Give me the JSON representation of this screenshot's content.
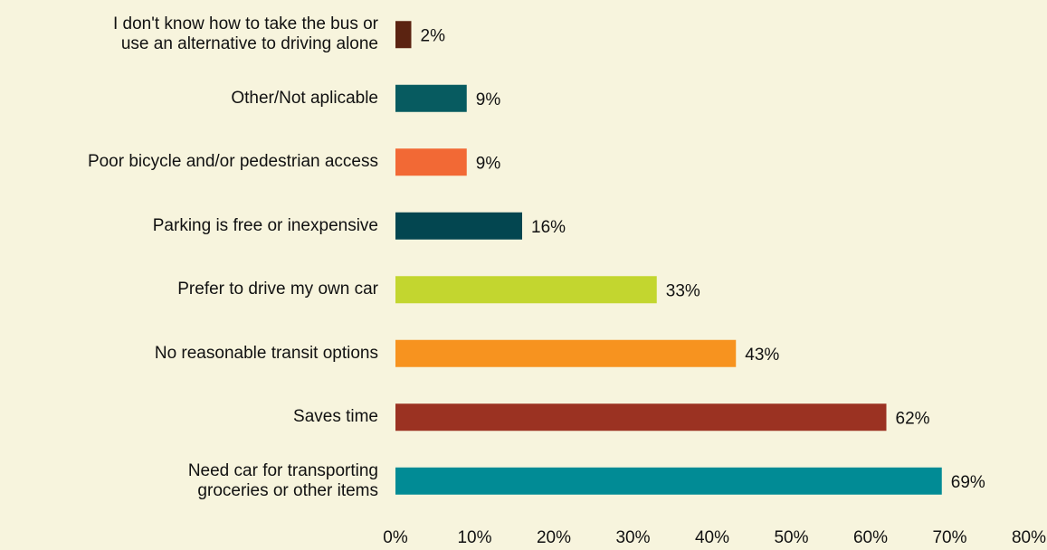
{
  "chart_data": {
    "type": "bar",
    "orientation": "horizontal",
    "categories": [
      "I don't know how to take the bus or\nuse an alternative to driving alone",
      "Other/Not aplicable",
      "Poor bicycle and/or pedestrian access",
      "Parking is free or inexpensive",
      "Prefer to drive my own car",
      "No reasonable transit options",
      "Saves time",
      "Need car for transporting\ngroceries or other items"
    ],
    "values": [
      2,
      9,
      9,
      16,
      33,
      43,
      62,
      69
    ],
    "value_labels": [
      "2%",
      "9%",
      "9%",
      "16%",
      "33%",
      "43%",
      "62%",
      "69%"
    ],
    "colors": [
      "#5b2311",
      "#075b60",
      "#f26935",
      "#034650",
      "#c3d62f",
      "#f7931f",
      "#9b3222",
      "#018b95"
    ],
    "xlim": [
      0,
      80
    ],
    "xticks": [
      {
        "value": 0,
        "label": "0%"
      },
      {
        "value": 10,
        "label": "10%"
      },
      {
        "value": 20,
        "label": "20%"
      },
      {
        "value": 30,
        "label": "30%"
      },
      {
        "value": 40,
        "label": "40%"
      },
      {
        "value": 50,
        "label": "50%"
      },
      {
        "value": 60,
        "label": "60%"
      },
      {
        "value": 70,
        "label": "70%"
      },
      {
        "value": 80,
        "label": "80%"
      }
    ]
  }
}
